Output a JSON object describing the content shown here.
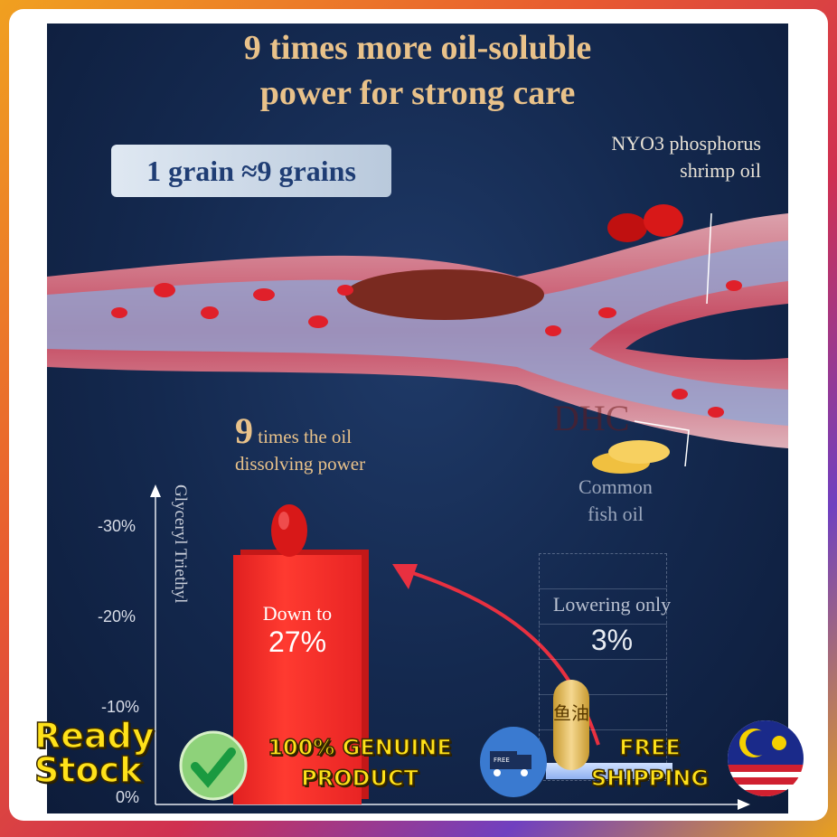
{
  "title": {
    "line1": "9 times more oil-soluble",
    "line2": "power for strong care"
  },
  "grain_box": "1 grain ≈9 grains",
  "nyo3_label": {
    "line1": "NYO3 phosphorus",
    "line2": "shrimp oil"
  },
  "fish_label": {
    "line1": "Common",
    "line2": "fish oil"
  },
  "nine_times": {
    "number": "9",
    "line1": "times the oil",
    "line2": "dissolving power"
  },
  "watermark": "DHC",
  "chart_data": {
    "type": "bar",
    "ylabel": "Glyceryl Triethyl",
    "yticks": [
      "0%",
      "-10%",
      "-20%",
      "-30%"
    ],
    "ylim": [
      0,
      -30
    ],
    "categories": [
      "NYO3 phosphorus shrimp oil",
      "Common fish oil"
    ],
    "values": [
      -27,
      -3
    ],
    "bar_labels": [
      {
        "line1": "Down to",
        "line2": "27%"
      },
      {
        "line1": "Lowering only",
        "line2": "3%"
      }
    ],
    "colors": [
      "#ff2a2a",
      "#ffffff"
    ]
  },
  "capsule_text": "鱼油",
  "banner": {
    "ready": "Ready",
    "stock": "Stock",
    "genuine1": "100% GENUINE",
    "genuine2": "PRODUCT",
    "free1": "FREE",
    "free2": "SHIPPING",
    "truck_text": "FREE",
    "icons": [
      "check-icon",
      "truck-icon",
      "malaysia-flag-icon"
    ]
  }
}
